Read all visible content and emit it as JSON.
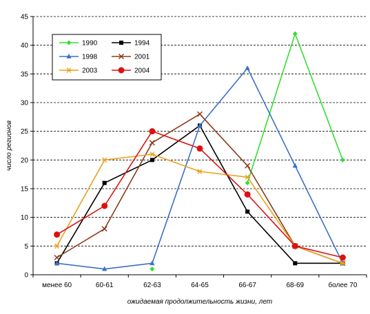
{
  "chart_data": {
    "type": "line",
    "title": "",
    "xlabel": "ожидаемая продолжительность жизни, лет",
    "ylabel": "число регионов",
    "categories": [
      "менее 60",
      "60-61",
      "62-63",
      "64-65",
      "66-67",
      "68-69",
      "более 70"
    ],
    "ylim": [
      0,
      45
    ],
    "yticks": [
      0,
      5,
      10,
      15,
      20,
      25,
      30,
      35,
      40,
      45
    ],
    "grid": true,
    "legend_position": "top-left",
    "series": [
      {
        "name": "1990",
        "color": "#33dd33",
        "marker": "diamond",
        "values": [
          null,
          null,
          1,
          null,
          16,
          42,
          20
        ]
      },
      {
        "name": "1994",
        "color": "#000000",
        "marker": "square",
        "values": [
          2,
          16,
          20,
          26,
          11,
          2,
          2
        ]
      },
      {
        "name": "1998",
        "color": "#3a6fc4",
        "marker": "triangle",
        "values": [
          2,
          1,
          2,
          26,
          36,
          19,
          2
        ]
      },
      {
        "name": "2001",
        "color": "#8b3a1a",
        "marker": "x",
        "values": [
          3,
          8,
          23,
          28,
          19,
          5,
          2
        ]
      },
      {
        "name": "2003",
        "color": "#e8a21c",
        "marker": "star",
        "values": [
          5,
          20,
          21,
          18,
          17,
          5,
          2
        ]
      },
      {
        "name": "2004",
        "color": "#dd1111",
        "marker": "circle",
        "values": [
          7,
          12,
          25,
          22,
          14,
          5,
          3
        ]
      }
    ]
  }
}
